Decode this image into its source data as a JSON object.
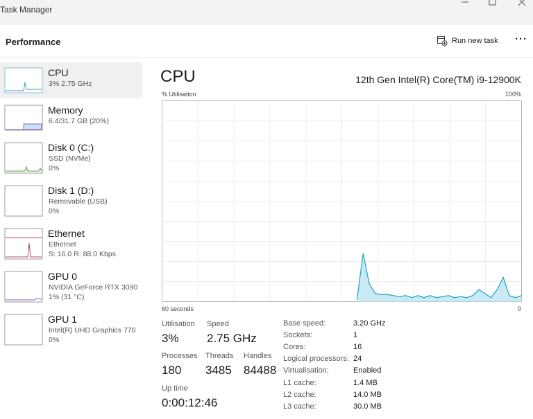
{
  "window_title": "Task Manager",
  "header": {
    "title": "Performance",
    "run_new_task": "Run new task"
  },
  "sidebar": [
    {
      "name": "CPU",
      "lines": [
        "3% 2.75 GHz"
      ]
    },
    {
      "name": "Memory",
      "lines": [
        "6.4/31.7 GB (20%)"
      ]
    },
    {
      "name": "Disk 0 (C:)",
      "lines": [
        "SSD (NVMe)",
        "0%"
      ]
    },
    {
      "name": "Disk 1 (D:)",
      "lines": [
        "Removable (USB)",
        "0%"
      ]
    },
    {
      "name": "Ethernet",
      "lines": [
        "Ethernet",
        "S: 16.0 R: 88.0 Kbps"
      ]
    },
    {
      "name": "GPU 0",
      "lines": [
        "NVIDIA GeForce RTX 3090",
        "1% (31 °C)"
      ]
    },
    {
      "name": "GPU 1",
      "lines": [
        "Intel(R) UHD Graphics 770",
        "0%"
      ]
    }
  ],
  "main": {
    "title": "CPU",
    "model": "12th Gen Intel(R) Core(TM) i9-12900K",
    "y_label": "% Utilisation",
    "y_max_label": "100%",
    "x_label": "60 seconds",
    "x_min_label": "0",
    "graph": {
      "ylim": [
        0,
        100
      ],
      "values": [
        null,
        null,
        null,
        null,
        null,
        null,
        null,
        null,
        null,
        null,
        null,
        null,
        null,
        null,
        null,
        null,
        null,
        null,
        null,
        null,
        null,
        null,
        null,
        null,
        null,
        null,
        null,
        null,
        null,
        null,
        null,
        null,
        1,
        24,
        9,
        4,
        3.5,
        3.5,
        3,
        2.5,
        3,
        2,
        3,
        2,
        3,
        2,
        2.5,
        3,
        2,
        2.5,
        2,
        3,
        6,
        4,
        2,
        6,
        12,
        3,
        2,
        3
      ]
    },
    "stats": [
      {
        "label": "Utilisation",
        "value": "3%"
      },
      {
        "label": "Speed",
        "value": "2.75 GHz"
      },
      {
        "label": "Processes",
        "value": "180"
      },
      {
        "label": "Threads",
        "value": "3485"
      },
      {
        "label": "Handles",
        "value": "84488"
      },
      {
        "label": "Up time",
        "value": "0:00:12:46"
      }
    ],
    "specs": [
      {
        "label": "Base speed:",
        "value": "3.20 GHz"
      },
      {
        "label": "Sockets:",
        "value": "1"
      },
      {
        "label": "Cores:",
        "value": "16"
      },
      {
        "label": "Logical processors:",
        "value": "24"
      },
      {
        "label": "Virtualisation:",
        "value": "Enabled"
      },
      {
        "label": "L1 cache:",
        "value": "1.4 MB"
      },
      {
        "label": "L2 cache:",
        "value": "14.0 MB"
      },
      {
        "label": "L3 cache:",
        "value": "30.0 MB"
      }
    ]
  }
}
